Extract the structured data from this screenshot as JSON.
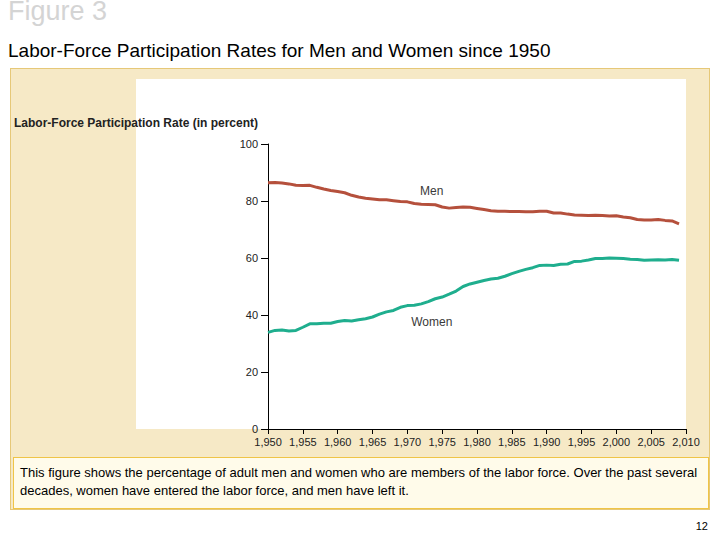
{
  "slide": {
    "title": "Figure 3",
    "subtitle": "Labor-Force Participation Rates for Men and Women since 1950",
    "caption": "This figure shows the percentage of adult men and women who are members of the labor force. Over the past several decades, women have entered the labor force, and men have left it.",
    "page": "12"
  },
  "chart_data": {
    "type": "line",
    "y_label": "Labor-Force Participation Rate (in percent)",
    "x": [
      1950,
      1951,
      1952,
      1953,
      1954,
      1955,
      1956,
      1957,
      1958,
      1959,
      1960,
      1961,
      1962,
      1963,
      1964,
      1965,
      1966,
      1967,
      1968,
      1969,
      1970,
      1971,
      1972,
      1973,
      1974,
      1975,
      1976,
      1977,
      1978,
      1979,
      1980,
      1981,
      1982,
      1983,
      1984,
      1985,
      1986,
      1987,
      1988,
      1989,
      1990,
      1991,
      1992,
      1993,
      1994,
      1995,
      1996,
      1997,
      1998,
      1999,
      2000,
      2001,
      2002,
      2003,
      2004,
      2005,
      2006,
      2007,
      2008,
      2009
    ],
    "series": [
      {
        "name": "Men",
        "color": "#b5503c",
        "values": [
          86.4,
          86.5,
          86.3,
          86.0,
          85.5,
          85.4,
          85.5,
          84.8,
          84.2,
          83.7,
          83.3,
          82.9,
          82.0,
          81.4,
          81.0,
          80.7,
          80.4,
          80.4,
          80.1,
          79.8,
          79.7,
          79.1,
          78.9,
          78.8,
          78.7,
          77.9,
          77.5,
          77.7,
          77.9,
          77.8,
          77.4,
          77.0,
          76.6,
          76.4,
          76.4,
          76.3,
          76.3,
          76.2,
          76.2,
          76.4,
          76.4,
          75.8,
          75.8,
          75.4,
          75.1,
          75.0,
          74.9,
          75.0,
          74.9,
          74.7,
          74.8,
          74.4,
          74.1,
          73.5,
          73.3,
          73.3,
          73.5,
          73.2,
          73.0,
          72.0
        ]
      },
      {
        "name": "Women",
        "color": "#1fae8e",
        "values": [
          33.9,
          34.6,
          34.7,
          34.4,
          34.6,
          35.7,
          36.9,
          36.9,
          37.1,
          37.1,
          37.7,
          38.1,
          37.9,
          38.3,
          38.7,
          39.3,
          40.3,
          41.1,
          41.6,
          42.7,
          43.3,
          43.4,
          43.9,
          44.7,
          45.7,
          46.3,
          47.3,
          48.4,
          50.0,
          50.9,
          51.5,
          52.1,
          52.6,
          52.9,
          53.6,
          54.5,
          55.3,
          56.0,
          56.6,
          57.4,
          57.5,
          57.4,
          57.8,
          57.9,
          58.8,
          58.9,
          59.3,
          59.8,
          59.8,
          60.0,
          59.9,
          59.8,
          59.6,
          59.5,
          59.2,
          59.3,
          59.4,
          59.3,
          59.5,
          59.2
        ]
      }
    ],
    "annotations": [
      {
        "text": "Men",
        "x": 1973.5,
        "y": 83.5
      },
      {
        "text": "Women",
        "x": 1973.5,
        "y": 37.5
      }
    ],
    "xlim": [
      1950,
      2010
    ],
    "xticks": [
      1950,
      1955,
      1960,
      1965,
      1970,
      1975,
      1980,
      1985,
      1990,
      1995,
      2000,
      2005,
      2010
    ],
    "ylim": [
      0,
      100
    ],
    "yticks": [
      0,
      20,
      40,
      60,
      80,
      100
    ],
    "grid": false
  }
}
